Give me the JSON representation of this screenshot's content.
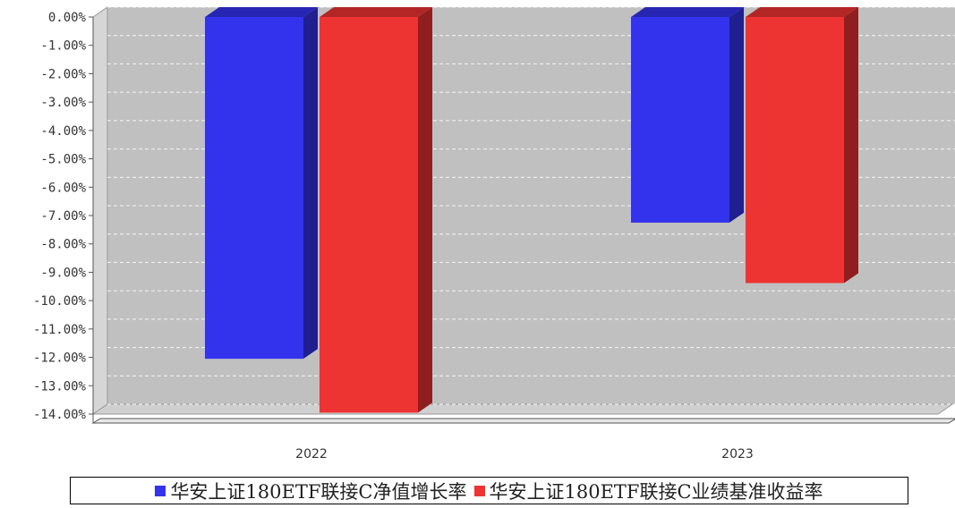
{
  "chart_data": {
    "type": "bar",
    "categories": [
      "2022",
      "2023"
    ],
    "series": [
      {
        "name": "华安上证180ETF联接C净值增长率",
        "values": [
          -12.05,
          -7.25
        ],
        "color": "#3333EE"
      },
      {
        "name": "华安上证180ETF联接C业绩基准收益率",
        "values": [
          -13.95,
          -9.38
        ],
        "color": "#EE3333"
      }
    ],
    "ylim": [
      -14,
      0
    ],
    "yticks": [
      "0.00%",
      "-1.00%",
      "-2.00%",
      "-3.00%",
      "-4.00%",
      "-5.00%",
      "-6.00%",
      "-7.00%",
      "-8.00%",
      "-9.00%",
      "-10.00%",
      "-11.00%",
      "-12.00%",
      "-13.00%",
      "-14.00%"
    ],
    "grid": true,
    "legend_position": "bottom",
    "background": "#C0C0C0",
    "title": "",
    "xlabel": "",
    "ylabel": ""
  }
}
